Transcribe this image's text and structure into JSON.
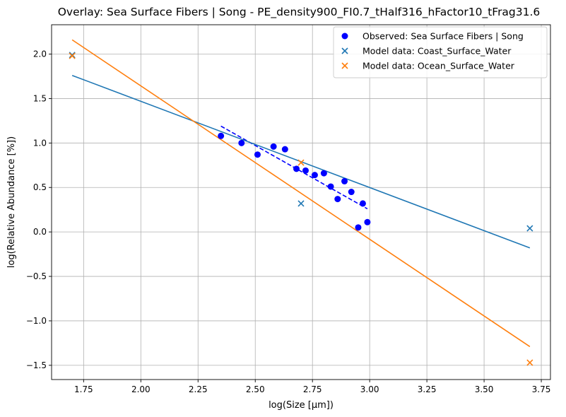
{
  "chart_data": {
    "type": "scatter",
    "title": "Overlay: Sea Surface Fibers | Song - PE_density900_FI0.7_tHalf316_hFactor10_tFrag31.6",
    "xlabel": "log(Size [μm])",
    "ylabel": "log(Relative Abundance [%])",
    "xlim": [
      1.61,
      3.79
    ],
    "ylim": [
      -1.66,
      2.33
    ],
    "xticks": [
      1.75,
      2.0,
      2.25,
      2.5,
      2.75,
      3.0,
      3.25,
      3.5,
      3.75
    ],
    "xtick_labels": [
      "1.75",
      "2.00",
      "2.25",
      "2.50",
      "2.75",
      "3.00",
      "3.25",
      "3.50",
      "3.75"
    ],
    "yticks": [
      -1.5,
      -1.0,
      -0.5,
      0.0,
      0.5,
      1.0,
      1.5,
      2.0
    ],
    "ytick_labels": [
      "−1.5",
      "−1.0",
      "−0.5",
      "0.0",
      "0.5",
      "1.0",
      "1.5",
      "2.0"
    ],
    "grid": true,
    "legend_position": "top-right",
    "series": [
      {
        "name": "Observed: Sea Surface Fibers | Song",
        "kind": "scatter-circle",
        "color": "#0000ff",
        "points": [
          [
            2.35,
            1.08
          ],
          [
            2.44,
            1.0
          ],
          [
            2.51,
            0.87
          ],
          [
            2.58,
            0.96
          ],
          [
            2.63,
            0.93
          ],
          [
            2.68,
            0.71
          ],
          [
            2.72,
            0.69
          ],
          [
            2.76,
            0.64
          ],
          [
            2.8,
            0.66
          ],
          [
            2.83,
            0.51
          ],
          [
            2.86,
            0.37
          ],
          [
            2.89,
            0.57
          ],
          [
            2.92,
            0.45
          ],
          [
            2.95,
            0.05
          ],
          [
            2.97,
            0.32
          ],
          [
            2.99,
            0.11
          ]
        ]
      },
      {
        "name": "Observed fit",
        "kind": "dashed-line",
        "color": "#0000ff",
        "points": [
          [
            2.35,
            1.19
          ],
          [
            2.99,
            0.26
          ]
        ]
      },
      {
        "name": "Model data: Coast_Surface_Water",
        "kind": "scatter-x",
        "color": "#1f77b4",
        "points": [
          [
            1.7,
            1.99
          ],
          [
            2.7,
            0.32
          ],
          [
            3.7,
            0.04
          ]
        ]
      },
      {
        "name": "Coast fit",
        "kind": "line",
        "color": "#1f77b4",
        "points": [
          [
            1.7,
            1.76
          ],
          [
            3.7,
            -0.18
          ]
        ]
      },
      {
        "name": "Model data: Ocean_Surface_Water",
        "kind": "scatter-x",
        "color": "#ff7f0e",
        "points": [
          [
            1.7,
            1.98
          ],
          [
            2.7,
            0.78
          ],
          [
            3.7,
            -1.47
          ]
        ]
      },
      {
        "name": "Ocean fit",
        "kind": "line",
        "color": "#ff7f0e",
        "points": [
          [
            1.7,
            2.16
          ],
          [
            3.7,
            -1.29
          ]
        ]
      }
    ],
    "legend": [
      {
        "label": "Observed: Sea Surface Fibers | Song",
        "marker": "circle",
        "color": "#0000ff"
      },
      {
        "label": "Model data: Coast_Surface_Water",
        "marker": "x",
        "color": "#1f77b4"
      },
      {
        "label": "Model data: Ocean_Surface_Water",
        "marker": "x",
        "color": "#ff7f0e"
      }
    ]
  }
}
